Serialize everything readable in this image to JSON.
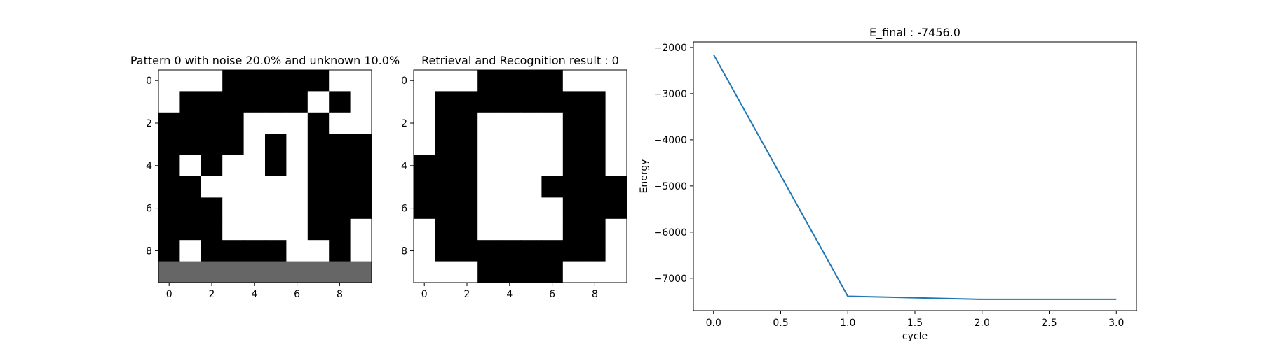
{
  "colors": {
    "on": "#000000",
    "off": "#ffffff",
    "unknown": "#666666",
    "line": "#1f77b4",
    "axis": "#000000",
    "background": "#ffffff"
  },
  "chart_data": [
    {
      "type": "heatmap",
      "title": "Pattern 0 with noise 20.0% and unknown 10.0%",
      "xlabel": "",
      "ylabel": "",
      "xticks": [
        0,
        2,
        4,
        6,
        8
      ],
      "yticks": [
        0,
        2,
        4,
        6,
        8
      ],
      "legend": "1 = black, 0 = white, -1 = grey (unknown)",
      "grid": [
        [
          0,
          0,
          0,
          1,
          1,
          1,
          1,
          1,
          0,
          0
        ],
        [
          0,
          1,
          1,
          1,
          1,
          1,
          1,
          0,
          1,
          0
        ],
        [
          1,
          1,
          1,
          1,
          0,
          0,
          0,
          1,
          0,
          0
        ],
        [
          1,
          1,
          1,
          1,
          0,
          1,
          0,
          1,
          1,
          1
        ],
        [
          1,
          0,
          1,
          0,
          0,
          1,
          0,
          1,
          1,
          1
        ],
        [
          1,
          1,
          0,
          0,
          0,
          0,
          0,
          1,
          1,
          1
        ],
        [
          1,
          1,
          1,
          0,
          0,
          0,
          0,
          1,
          1,
          1
        ],
        [
          1,
          1,
          1,
          0,
          0,
          0,
          0,
          1,
          1,
          0
        ],
        [
          1,
          0,
          1,
          1,
          1,
          1,
          0,
          0,
          1,
          0
        ],
        [
          -1,
          -1,
          -1,
          -1,
          -1,
          -1,
          -1,
          -1,
          -1,
          -1
        ]
      ]
    },
    {
      "type": "heatmap",
      "title": "Retrieval and Recognition result : 0",
      "xlabel": "",
      "ylabel": "",
      "xticks": [
        0,
        2,
        4,
        6,
        8
      ],
      "yticks": [
        0,
        2,
        4,
        6,
        8
      ],
      "legend": "1 = black, 0 = white",
      "grid": [
        [
          0,
          0,
          0,
          1,
          1,
          1,
          1,
          0,
          0,
          0
        ],
        [
          0,
          1,
          1,
          1,
          1,
          1,
          1,
          1,
          1,
          0
        ],
        [
          0,
          1,
          1,
          0,
          0,
          0,
          0,
          1,
          1,
          0
        ],
        [
          0,
          1,
          1,
          0,
          0,
          0,
          0,
          1,
          1,
          0
        ],
        [
          1,
          1,
          1,
          0,
          0,
          0,
          0,
          1,
          1,
          0
        ],
        [
          1,
          1,
          1,
          0,
          0,
          0,
          1,
          1,
          1,
          1
        ],
        [
          1,
          1,
          1,
          0,
          0,
          0,
          0,
          1,
          1,
          1
        ],
        [
          0,
          1,
          1,
          0,
          0,
          0,
          0,
          1,
          1,
          0
        ],
        [
          0,
          1,
          1,
          1,
          1,
          1,
          1,
          1,
          1,
          0
        ],
        [
          0,
          0,
          0,
          1,
          1,
          1,
          1,
          0,
          0,
          0
        ]
      ]
    },
    {
      "type": "line",
      "title": "E_final : -7456.0",
      "xlabel": "cycle",
      "ylabel": "Energy",
      "grid": false,
      "xlim": [
        -0.15,
        3.15
      ],
      "ylim": [
        -7700,
        -1880
      ],
      "xticks": [
        0.0,
        0.5,
        1.0,
        1.5,
        2.0,
        2.5,
        3.0
      ],
      "xtick_labels": [
        "0.0",
        "0.5",
        "1.0",
        "1.5",
        "2.0",
        "2.5",
        "3.0"
      ],
      "yticks": [
        -2000,
        -3000,
        -4000,
        -5000,
        -6000,
        -7000
      ],
      "ytick_labels": [
        "−2000",
        "−3000",
        "−4000",
        "−5000",
        "−6000",
        "−7000"
      ],
      "series": [
        {
          "x": [
            0,
            1,
            2,
            3
          ],
          "values": [
            -2150,
            -7390,
            -7456,
            -7456
          ]
        }
      ]
    }
  ]
}
